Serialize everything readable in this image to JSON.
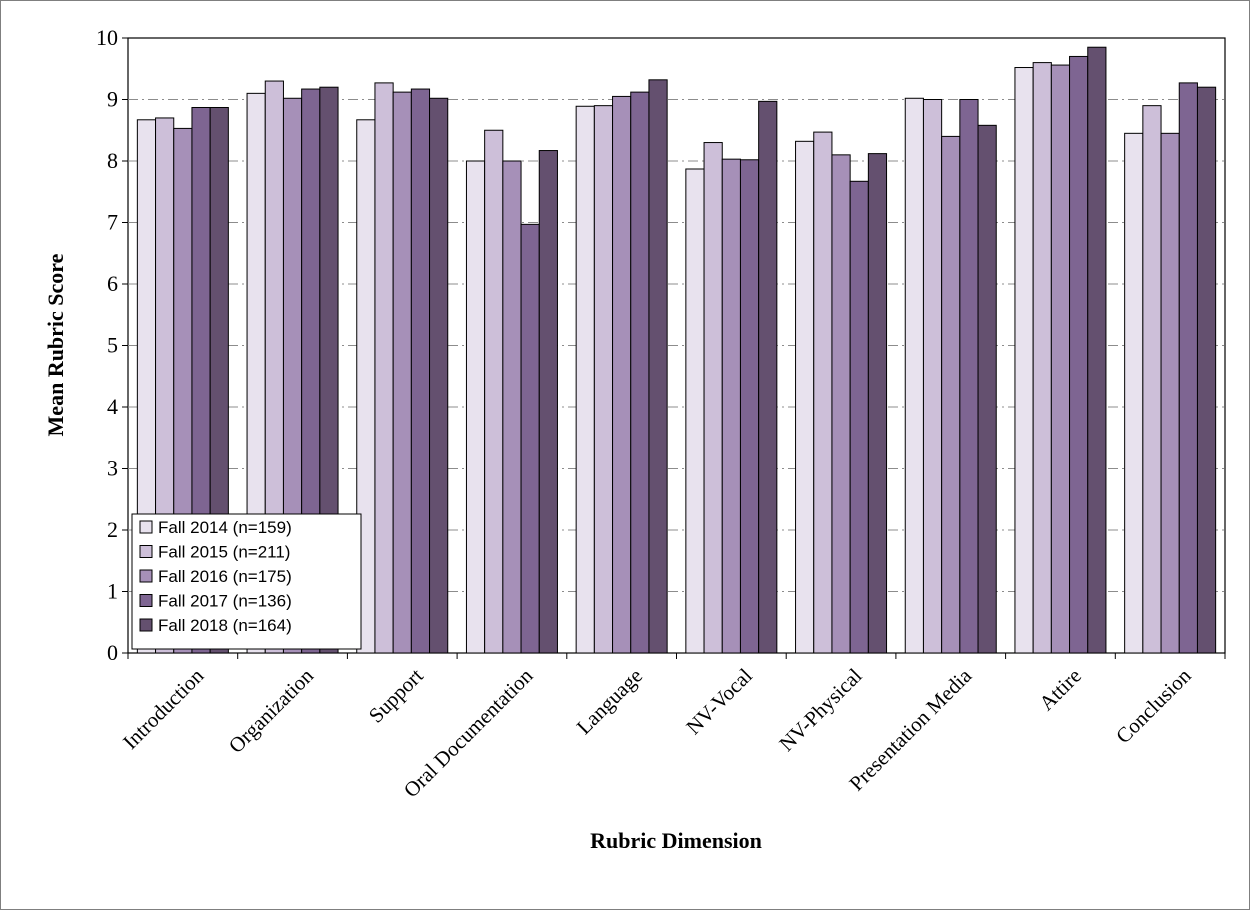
{
  "chart_data": {
    "type": "bar",
    "title": "",
    "xlabel": "Rubric Dimension",
    "ylabel": "Mean Rubric Score",
    "ylim": [
      0,
      10
    ],
    "yticks": [
      0,
      1,
      2,
      3,
      4,
      5,
      6,
      7,
      8,
      9,
      10
    ],
    "grid": "horizontal dash-dot",
    "legend_position": "bottom-left",
    "categories": [
      "Introduction",
      "Organization",
      "Support",
      "Oral Documentation",
      "Language",
      "NV-Vocal",
      "NV-Physical",
      "Presentation Media",
      "Attire",
      "Conclusion"
    ],
    "series": [
      {
        "name": "Fall 2014 (n=159)",
        "color": "#e8e2ee",
        "values": [
          8.67,
          9.1,
          8.67,
          8.0,
          8.89,
          7.87,
          8.32,
          9.02,
          9.52,
          8.45
        ]
      },
      {
        "name": "Fall 2015 (n=211)",
        "color": "#cdbfd9",
        "values": [
          8.7,
          9.3,
          9.27,
          8.5,
          8.9,
          8.3,
          8.47,
          9.0,
          9.6,
          8.9
        ]
      },
      {
        "name": "Fall 2016 (n=175)",
        "color": "#a690b8",
        "values": [
          8.53,
          9.02,
          9.12,
          8.0,
          9.05,
          8.03,
          8.1,
          8.4,
          9.56,
          8.45
        ]
      },
      {
        "name": "Fall 2017 (n=136)",
        "color": "#7e6592",
        "values": [
          8.87,
          9.17,
          9.17,
          6.97,
          9.12,
          8.02,
          7.67,
          9.0,
          9.7,
          9.27
        ]
      },
      {
        "name": "Fall 2018 (n=164)",
        "color": "#64506f",
        "values": [
          8.87,
          9.2,
          9.02,
          8.17,
          9.32,
          8.97,
          8.12,
          8.58,
          9.85,
          9.2
        ]
      }
    ]
  }
}
